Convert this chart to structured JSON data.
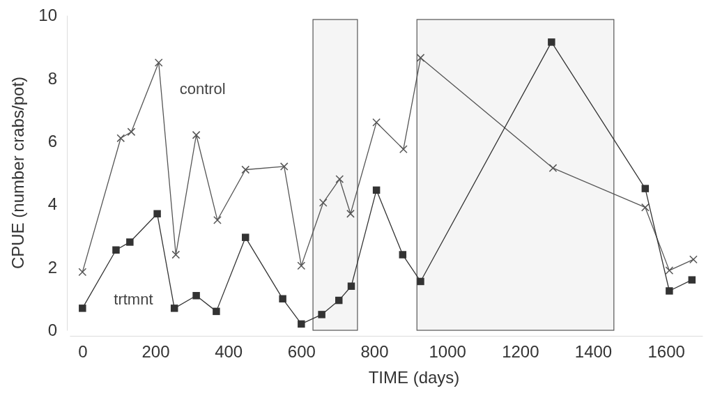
{
  "chart_data": {
    "type": "line",
    "xlabel": "TIME (days)",
    "ylabel": "CPUE (number crabs/pot)",
    "xlim": [
      -35,
      1700
    ],
    "ylim": [
      0,
      10
    ],
    "xticks": [
      0,
      200,
      400,
      600,
      800,
      1000,
      1200,
      1400,
      1600
    ],
    "yticks": [
      0,
      2,
      4,
      6,
      8,
      10
    ],
    "series": [
      {
        "name": "control",
        "color": "#555555",
        "marker": "cross",
        "x": [
          0,
          105,
          134,
          209,
          256,
          312,
          370,
          447,
          553,
          600,
          660,
          705,
          735,
          806,
          880,
          927,
          1290,
          1543,
          1609,
          1675
        ],
        "values": [
          1.85,
          6.1,
          6.3,
          8.5,
          2.4,
          6.2,
          3.5,
          5.1,
          5.2,
          2.05,
          4.05,
          4.8,
          3.7,
          6.6,
          5.75,
          8.65,
          5.15,
          3.9,
          1.9,
          2.25
        ]
      },
      {
        "name": "trtmnt",
        "color": "#333333",
        "marker": "square",
        "x": [
          0,
          92,
          130,
          205,
          252,
          312,
          367,
          447,
          549,
          600,
          656,
          703,
          737,
          806,
          878,
          927,
          1286,
          1543,
          1609,
          1671
        ],
        "values": [
          0.7,
          2.55,
          2.8,
          3.7,
          0.7,
          1.1,
          0.6,
          2.95,
          1.0,
          0.2,
          0.5,
          0.95,
          1.4,
          4.45,
          2.4,
          1.55,
          9.15,
          4.5,
          1.25,
          1.6
        ]
      }
    ],
    "bands": [
      {
        "axis": "x",
        "from": 632,
        "to": 754,
        "color": "#555555"
      },
      {
        "axis": "x",
        "from": 917,
        "to": 1457,
        "color": "#555555"
      }
    ]
  }
}
